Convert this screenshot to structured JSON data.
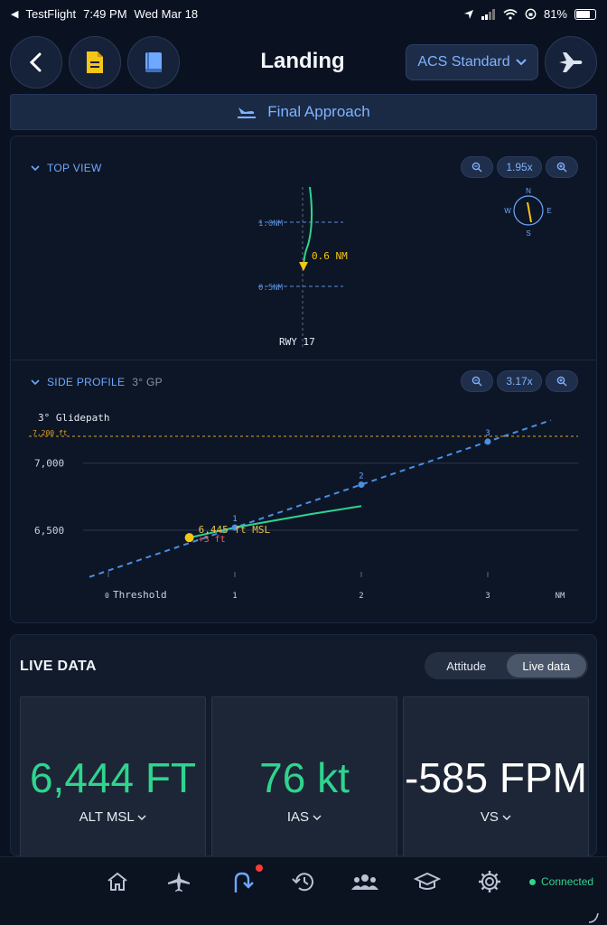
{
  "status_bar": {
    "app": "TestFlight",
    "time": "7:49 PM",
    "date": "Wed Mar 18",
    "battery": "81%",
    "battery_level": 0.81
  },
  "header": {
    "title": "Landing",
    "standard_label": "ACS Standard"
  },
  "phase": {
    "label": "Final Approach"
  },
  "top_view": {
    "label": "TOP VIEW",
    "zoom": "1.95x",
    "ring_1nm": "1.0NM",
    "ring_05nm": "0.5NM",
    "distance": "0.6 NM",
    "runway": "RWY 17",
    "compass": {
      "n": "N",
      "e": "E",
      "s": "S",
      "w": "W"
    }
  },
  "side_profile": {
    "label": "SIDE PROFILE",
    "glidepath": "3° GP",
    "zoom": "3.17x",
    "chart_title": "3° Glidepath",
    "ref_altitude_label": "7,200 ft",
    "y_tick_labels": [
      "7,000",
      "6,500"
    ],
    "x_tick_labels": [
      "0",
      "Threshold",
      "1",
      "2",
      "3",
      "NM"
    ],
    "point_labels": [
      "1",
      "2",
      "3"
    ],
    "aircraft_label": "6,445 ft MSL",
    "deviation_label": "+3 ft"
  },
  "chart_data": {
    "type": "line",
    "x": [
      0,
      1,
      2,
      3
    ],
    "series": [
      {
        "values": [
          6200,
          6520,
          6840,
          7160
        ]
      },
      {
        "values": [
          6445,
          6520,
          6620,
          6680
        ]
      }
    ],
    "x_unit": "NM",
    "y_ticks": [
      6500,
      7000
    ],
    "ref_altitude": 7200,
    "aircraft": {
      "x": 0.64,
      "y": 6445,
      "deviation": 3
    }
  },
  "live_data": {
    "title": "LIVE DATA",
    "toggle": [
      "Attitude",
      "Live data"
    ],
    "metrics": [
      {
        "value": "6,444 FT",
        "label": "ALT MSL"
      },
      {
        "value": "76 kt",
        "label": "IAS"
      },
      {
        "value": "-585 FPM",
        "label": "VS"
      }
    ]
  },
  "tab_bar": {
    "connection": "Connected"
  },
  "colors": {
    "accent": "#7fb3ff",
    "green": "#2fd48e",
    "yellow": "#f5c518",
    "glidepath": "#4a90e2"
  }
}
